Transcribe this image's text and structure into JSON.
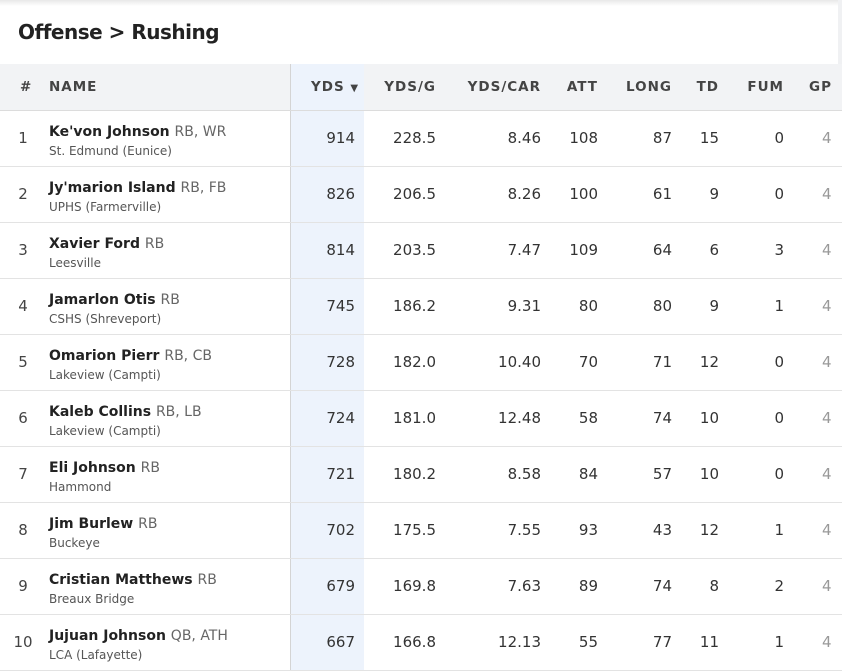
{
  "breadcrumb": "Offense > Rushing",
  "columns": {
    "rank": "#",
    "name": "NAME",
    "yds": "YDS",
    "sort_indicator": "▼",
    "ydsg": "YDS/G",
    "ydscar": "YDS/CAR",
    "att": "ATT",
    "long": "LONG",
    "td": "TD",
    "fum": "FUM",
    "gp": "GP"
  },
  "rows": [
    {
      "rank": "1",
      "name": "Ke'von Johnson",
      "pos": "RB, WR",
      "school": "St. Edmund (Eunice)",
      "yds": "914",
      "ydsg": "228.5",
      "ydscar": "8.46",
      "att": "108",
      "long": "87",
      "td": "15",
      "fum": "0",
      "gp": "4"
    },
    {
      "rank": "2",
      "name": "Jy'marion Island",
      "pos": "RB, FB",
      "school": "UPHS (Farmerville)",
      "yds": "826",
      "ydsg": "206.5",
      "ydscar": "8.26",
      "att": "100",
      "long": "61",
      "td": "9",
      "fum": "0",
      "gp": "4"
    },
    {
      "rank": "3",
      "name": "Xavier Ford",
      "pos": "RB",
      "school": "Leesville",
      "yds": "814",
      "ydsg": "203.5",
      "ydscar": "7.47",
      "att": "109",
      "long": "64",
      "td": "6",
      "fum": "3",
      "gp": "4"
    },
    {
      "rank": "4",
      "name": "Jamarlon Otis",
      "pos": "RB",
      "school": "CSHS (Shreveport)",
      "yds": "745",
      "ydsg": "186.2",
      "ydscar": "9.31",
      "att": "80",
      "long": "80",
      "td": "9",
      "fum": "1",
      "gp": "4"
    },
    {
      "rank": "5",
      "name": "Omarion Pierr",
      "pos": "RB, CB",
      "school": "Lakeview (Campti)",
      "yds": "728",
      "ydsg": "182.0",
      "ydscar": "10.40",
      "att": "70",
      "long": "71",
      "td": "12",
      "fum": "0",
      "gp": "4"
    },
    {
      "rank": "6",
      "name": "Kaleb Collins",
      "pos": "RB, LB",
      "school": "Lakeview (Campti)",
      "yds": "724",
      "ydsg": "181.0",
      "ydscar": "12.48",
      "att": "58",
      "long": "74",
      "td": "10",
      "fum": "0",
      "gp": "4"
    },
    {
      "rank": "7",
      "name": "Eli Johnson",
      "pos": "RB",
      "school": "Hammond",
      "yds": "721",
      "ydsg": "180.2",
      "ydscar": "8.58",
      "att": "84",
      "long": "57",
      "td": "10",
      "fum": "0",
      "gp": "4"
    },
    {
      "rank": "8",
      "name": "Jim Burlew",
      "pos": "RB",
      "school": "Buckeye",
      "yds": "702",
      "ydsg": "175.5",
      "ydscar": "7.55",
      "att": "93",
      "long": "43",
      "td": "12",
      "fum": "1",
      "gp": "4"
    },
    {
      "rank": "9",
      "name": "Cristian Matthews",
      "pos": "RB",
      "school": "Breaux Bridge",
      "yds": "679",
      "ydsg": "169.8",
      "ydscar": "7.63",
      "att": "89",
      "long": "74",
      "td": "8",
      "fum": "2",
      "gp": "4"
    },
    {
      "rank": "10",
      "name": "Jujuan Johnson",
      "pos": "QB, ATH",
      "school": "LCA (Lafayette)",
      "yds": "667",
      "ydsg": "166.8",
      "ydscar": "12.13",
      "att": "55",
      "long": "77",
      "td": "11",
      "fum": "1",
      "gp": "4"
    }
  ]
}
